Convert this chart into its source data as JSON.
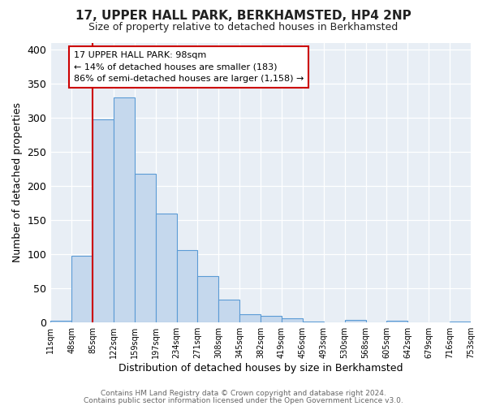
{
  "title": "17, UPPER HALL PARK, BERKHAMSTED, HP4 2NP",
  "subtitle": "Size of property relative to detached houses in Berkhamsted",
  "xlabel": "Distribution of detached houses by size in Berkhamsted",
  "ylabel": "Number of detached properties",
  "footer_line1": "Contains HM Land Registry data © Crown copyright and database right 2024.",
  "footer_line2": "Contains public sector information licensed under the Open Government Licence v3.0.",
  "bin_labels": [
    "11sqm",
    "48sqm",
    "85sqm",
    "122sqm",
    "159sqm",
    "197sqm",
    "234sqm",
    "271sqm",
    "308sqm",
    "345sqm",
    "382sqm",
    "419sqm",
    "456sqm",
    "493sqm",
    "530sqm",
    "568sqm",
    "605sqm",
    "642sqm",
    "679sqm",
    "716sqm",
    "753sqm"
  ],
  "bar_values": [
    3,
    98,
    298,
    330,
    218,
    160,
    106,
    68,
    33,
    12,
    10,
    6,
    1,
    0,
    4,
    0,
    3,
    0,
    0,
    2
  ],
  "bar_color": "#c5d8ed",
  "bar_edge_color": "#5b9bd5",
  "ylim": [
    0,
    410
  ],
  "yticks": [
    0,
    50,
    100,
    150,
    200,
    250,
    300,
    350,
    400
  ],
  "vline_x": 1.5,
  "vline_color": "#cc0000",
  "annotation_title": "17 UPPER HALL PARK: 98sqm",
  "annotation_line1": "← 14% of detached houses are smaller (183)",
  "annotation_line2": "86% of semi-detached houses are larger (1,158) →",
  "annotation_box_color": "#ffffff",
  "annotation_box_edge": "#cc0000",
  "fig_bg_color": "#ffffff",
  "plot_bg_color": "#e8eef5",
  "grid_color": "#ffffff"
}
